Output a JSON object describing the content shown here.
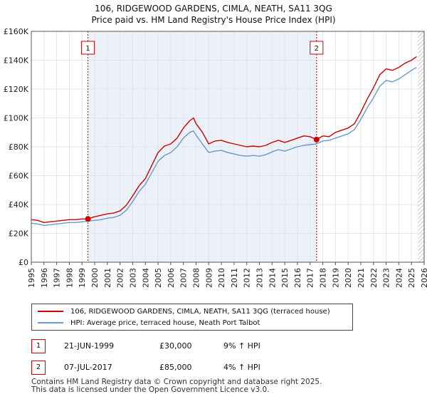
{
  "chart_data": {
    "type": "line",
    "title": "106, RIDGEWOOD GARDENS, CIMLA, NEATH, SA11 3QG",
    "subtitle": "Price paid vs. HM Land Registry's House Price Index (HPI)",
    "xlabel": "",
    "ylabel": "",
    "xlim": [
      1995,
      2026
    ],
    "ylim": [
      0,
      160000
    ],
    "y_ticks": [
      {
        "value": 0,
        "label": "£0"
      },
      {
        "value": 20000,
        "label": "£20K"
      },
      {
        "value": 40000,
        "label": "£40K"
      },
      {
        "value": 60000,
        "label": "£60K"
      },
      {
        "value": 80000,
        "label": "£80K"
      },
      {
        "value": 100000,
        "label": "£100K"
      },
      {
        "value": 120000,
        "label": "£120K"
      },
      {
        "value": 140000,
        "label": "£140K"
      },
      {
        "value": 160000,
        "label": "£160K"
      }
    ],
    "x_ticks": [
      "1995",
      "1996",
      "1997",
      "1998",
      "1999",
      "2000",
      "2001",
      "2002",
      "2003",
      "2004",
      "2005",
      "2006",
      "2007",
      "2008",
      "2009",
      "2010",
      "2011",
      "2012",
      "2013",
      "2014",
      "2015",
      "2016",
      "2017",
      "2018",
      "2019",
      "2020",
      "2021",
      "2022",
      "2023",
      "2024",
      "2025",
      "2026"
    ],
    "grid": true,
    "series": [
      {
        "name": "106, RIDGEWOOD GARDENS, CIMLA, NEATH, SA11 3QG (terraced house)",
        "color": "#cc0000",
        "points": [
          [
            1995.0,
            29500
          ],
          [
            1995.5,
            29000
          ],
          [
            1996.0,
            27500
          ],
          [
            1996.5,
            28000
          ],
          [
            1997.0,
            28500
          ],
          [
            1997.5,
            29000
          ],
          [
            1998.0,
            29500
          ],
          [
            1998.5,
            29500
          ],
          [
            1999.0,
            30000
          ],
          [
            1999.47,
            30000
          ],
          [
            2000.0,
            31500
          ],
          [
            2000.5,
            32500
          ],
          [
            2001.0,
            33500
          ],
          [
            2001.5,
            34000
          ],
          [
            2002.0,
            35500
          ],
          [
            2002.5,
            39500
          ],
          [
            2003.0,
            46000
          ],
          [
            2003.5,
            53000
          ],
          [
            2004.0,
            58000
          ],
          [
            2004.5,
            67000
          ],
          [
            2005.0,
            76000
          ],
          [
            2005.5,
            80500
          ],
          [
            2006.0,
            82000
          ],
          [
            2006.5,
            86000
          ],
          [
            2007.0,
            93000
          ],
          [
            2007.5,
            98000
          ],
          [
            2007.8,
            100000
          ],
          [
            2008.0,
            96000
          ],
          [
            2008.5,
            90000
          ],
          [
            2009.0,
            82000
          ],
          [
            2009.5,
            84000
          ],
          [
            2010.0,
            84500
          ],
          [
            2010.5,
            83000
          ],
          [
            2011.0,
            82000
          ],
          [
            2011.5,
            81000
          ],
          [
            2012.0,
            80000
          ],
          [
            2012.5,
            80500
          ],
          [
            2013.0,
            80000
          ],
          [
            2013.5,
            81000
          ],
          [
            2014.0,
            83000
          ],
          [
            2014.5,
            84500
          ],
          [
            2015.0,
            83000
          ],
          [
            2015.5,
            84500
          ],
          [
            2016.0,
            86000
          ],
          [
            2016.5,
            87500
          ],
          [
            2017.0,
            87000
          ],
          [
            2017.51,
            85000
          ],
          [
            2018.0,
            87500
          ],
          [
            2018.5,
            87000
          ],
          [
            2019.0,
            90000
          ],
          [
            2019.5,
            91500
          ],
          [
            2020.0,
            93000
          ],
          [
            2020.5,
            96000
          ],
          [
            2021.0,
            104000
          ],
          [
            2021.5,
            113000
          ],
          [
            2022.0,
            121000
          ],
          [
            2022.5,
            130000
          ],
          [
            2023.0,
            134000
          ],
          [
            2023.5,
            133000
          ],
          [
            2024.0,
            135000
          ],
          [
            2024.5,
            138000
          ],
          [
            2025.0,
            140000
          ],
          [
            2025.4,
            142500
          ]
        ]
      },
      {
        "name": "HPI: Average price, terraced house, Neath Port Talbot",
        "color": "#6a98cc",
        "points": [
          [
            1995.0,
            27000
          ],
          [
            1995.5,
            26500
          ],
          [
            1996.0,
            25500
          ],
          [
            1996.5,
            26000
          ],
          [
            1997.0,
            26500
          ],
          [
            1997.5,
            27000
          ],
          [
            1998.0,
            27500
          ],
          [
            1998.5,
            27500
          ],
          [
            1999.0,
            28000
          ],
          [
            1999.5,
            28500
          ],
          [
            2000.0,
            29000
          ],
          [
            2000.5,
            29500
          ],
          [
            2001.0,
            30500
          ],
          [
            2001.5,
            31000
          ],
          [
            2002.0,
            32500
          ],
          [
            2002.5,
            36000
          ],
          [
            2003.0,
            42000
          ],
          [
            2003.5,
            49000
          ],
          [
            2004.0,
            54000
          ],
          [
            2004.5,
            62000
          ],
          [
            2005.0,
            70000
          ],
          [
            2005.5,
            74000
          ],
          [
            2006.0,
            76000
          ],
          [
            2006.5,
            80000
          ],
          [
            2007.0,
            86000
          ],
          [
            2007.5,
            90000
          ],
          [
            2007.8,
            91000
          ],
          [
            2008.0,
            88000
          ],
          [
            2008.5,
            82000
          ],
          [
            2009.0,
            76000
          ],
          [
            2009.5,
            77000
          ],
          [
            2010.0,
            77500
          ],
          [
            2010.5,
            76000
          ],
          [
            2011.0,
            75000
          ],
          [
            2011.5,
            74000
          ],
          [
            2012.0,
            73500
          ],
          [
            2012.5,
            74000
          ],
          [
            2013.0,
            73500
          ],
          [
            2013.5,
            74500
          ],
          [
            2014.0,
            76500
          ],
          [
            2014.5,
            78000
          ],
          [
            2015.0,
            77000
          ],
          [
            2015.5,
            78500
          ],
          [
            2016.0,
            80000
          ],
          [
            2016.5,
            81000
          ],
          [
            2017.0,
            81500
          ],
          [
            2017.5,
            82000
          ],
          [
            2018.0,
            84000
          ],
          [
            2018.5,
            84500
          ],
          [
            2019.0,
            86000
          ],
          [
            2019.5,
            87500
          ],
          [
            2020.0,
            89000
          ],
          [
            2020.5,
            92000
          ],
          [
            2021.0,
            99000
          ],
          [
            2021.5,
            107000
          ],
          [
            2022.0,
            114000
          ],
          [
            2022.5,
            122000
          ],
          [
            2023.0,
            126000
          ],
          [
            2023.5,
            125000
          ],
          [
            2024.0,
            127000
          ],
          [
            2024.5,
            130000
          ],
          [
            2025.0,
            133000
          ],
          [
            2025.4,
            135000
          ]
        ]
      }
    ],
    "sales": [
      {
        "id": "1",
        "x": 1999.47,
        "value": 30000
      },
      {
        "id": "2",
        "x": 2017.51,
        "value": 85000
      }
    ],
    "hatch_from": 2025.5,
    "colors": {
      "grid": "#dfe6f0",
      "axis": "#555555",
      "band": "#dde6f3",
      "vline": "#cc0000",
      "hatch": "#999999"
    }
  },
  "legend": {
    "items": [
      {
        "label": "106, RIDGEWOOD GARDENS, CIMLA, NEATH, SA11 3QG (terraced house)",
        "color": "#cc0000"
      },
      {
        "label": "HPI: Average price, terraced house, Neath Port Talbot",
        "color": "#6a98cc"
      }
    ]
  },
  "transactions": [
    {
      "num": "1",
      "date": "21-JUN-1999",
      "price": "£30,000",
      "hpi": "9% ↑ HPI"
    },
    {
      "num": "2",
      "date": "07-JUL-2017",
      "price": "£85,000",
      "hpi": "4% ↑ HPI"
    }
  ],
  "footer": {
    "line1": "Contains HM Land Registry data © Crown copyright and database right 2025.",
    "line2": "This data is licensed under the Open Government Licence v3.0."
  }
}
